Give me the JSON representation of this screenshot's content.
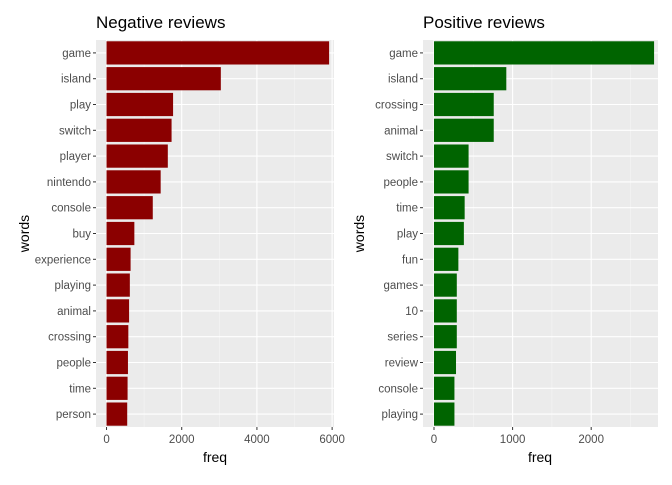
{
  "chart_data": [
    {
      "type": "bar",
      "orientation": "horizontal",
      "title": "Negative reviews",
      "xlabel": "freq",
      "ylabel": "words",
      "color": "#8b0000",
      "panel_background": "#ebebeb",
      "grid": true,
      "xlim": [
        -280,
        6050
      ],
      "xticks": [
        0,
        2000,
        4000,
        6000
      ],
      "xtick_labels": [
        "0",
        "2000",
        "4000",
        "6000"
      ],
      "categories": [
        "game",
        "island",
        "play",
        "switch",
        "player",
        "nintendo",
        "console",
        "buy",
        "experience",
        "playing",
        "animal",
        "crossing",
        "people",
        "time",
        "person"
      ],
      "values": [
        5920,
        3040,
        1770,
        1730,
        1630,
        1440,
        1230,
        740,
        640,
        620,
        600,
        580,
        570,
        560,
        550
      ]
    },
    {
      "type": "bar",
      "orientation": "horizontal",
      "title": "Positive reviews",
      "xlabel": "freq",
      "ylabel": "words",
      "color": "#006400",
      "panel_background": "#ebebeb",
      "grid": true,
      "xlim": [
        -140,
        2850
      ],
      "xticks": [
        0,
        1000,
        2000
      ],
      "xtick_labels": [
        "0",
        "1000",
        "2000"
      ],
      "categories": [
        "game",
        "island",
        "crossing",
        "animal",
        "switch",
        "people",
        "time",
        "play",
        "fun",
        "games",
        "10",
        "series",
        "review",
        "console",
        "playing"
      ],
      "values": [
        2800,
        920,
        760,
        760,
        440,
        440,
        390,
        380,
        310,
        290,
        290,
        290,
        280,
        260,
        260
      ]
    }
  ]
}
